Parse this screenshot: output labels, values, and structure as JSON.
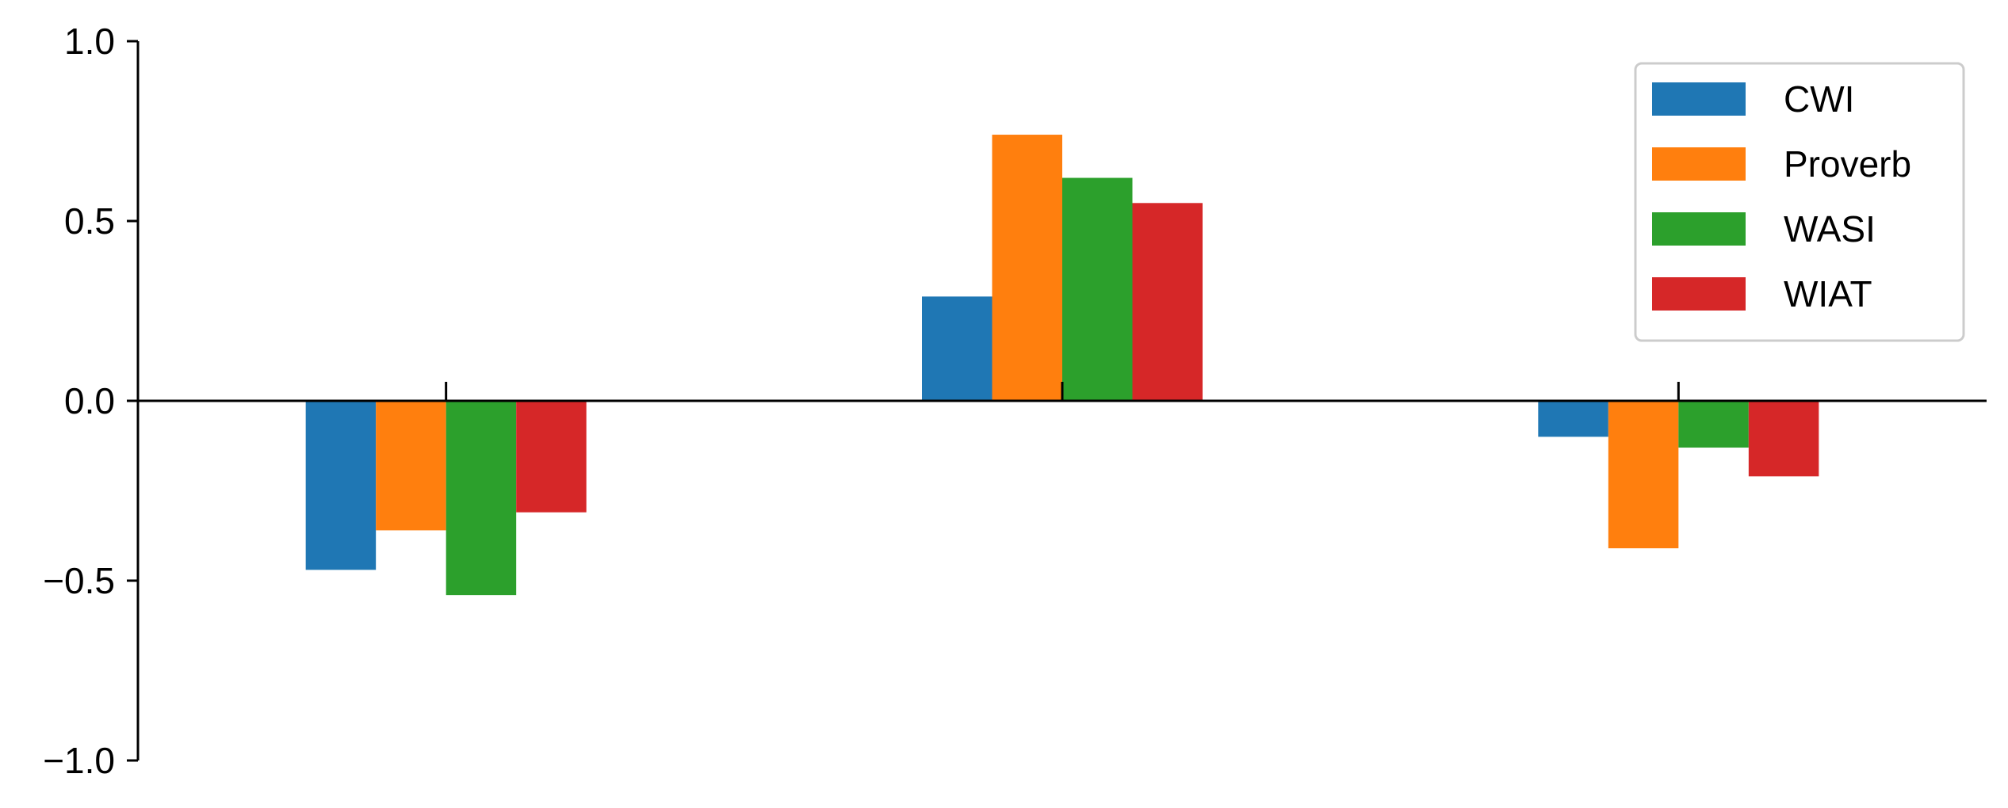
{
  "chart_data": {
    "type": "bar",
    "title": "",
    "xlabel": "",
    "ylabel": "",
    "ylim": [
      -1.0,
      1.0
    ],
    "yticks": [
      1.0,
      0.5,
      0.0,
      -0.5,
      -1.0
    ],
    "ytick_labels": [
      "1.0",
      "0.5",
      "0.0",
      "−0.5",
      "−1.0"
    ],
    "categories": [
      "",
      "",
      ""
    ],
    "grid": false,
    "legend_position": "top-right",
    "series": [
      {
        "name": "CWI",
        "color": "#1f77b4",
        "values": [
          -0.47,
          0.29,
          -0.1
        ]
      },
      {
        "name": "Proverb",
        "color": "#ff7f0e",
        "values": [
          -0.36,
          0.74,
          -0.41
        ]
      },
      {
        "name": "WASI",
        "color": "#2ca02c",
        "values": [
          -0.54,
          0.62,
          -0.13
        ]
      },
      {
        "name": "WIAT",
        "color": "#d62728",
        "values": [
          -0.31,
          0.55,
          -0.21
        ]
      }
    ]
  }
}
